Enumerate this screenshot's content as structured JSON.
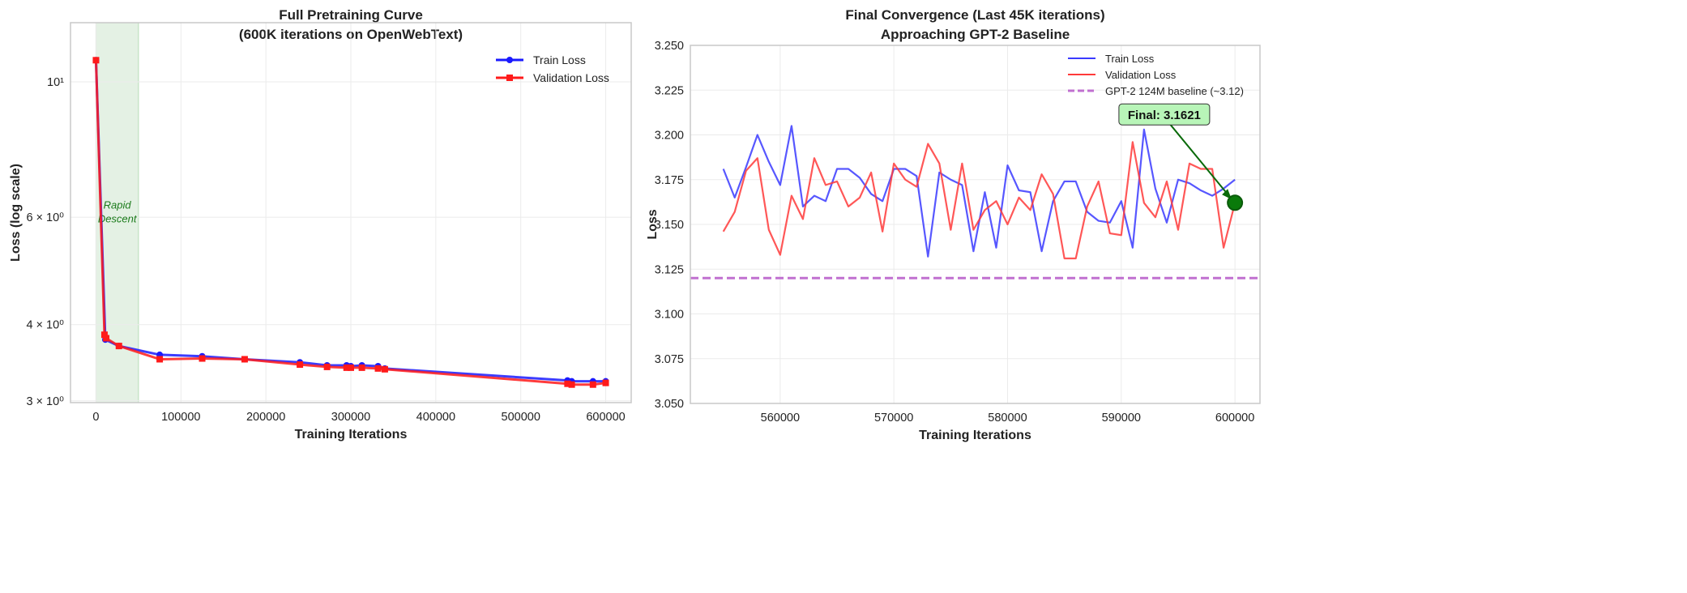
{
  "chart_data": [
    {
      "type": "line",
      "title": "Full Pretraining Curve\n(600K iterations on OpenWebText)",
      "title_lines": [
        "Full Pretraining Curve",
        "(600K iterations on OpenWebText)"
      ],
      "xlabel": "Training Iterations",
      "ylabel": "Loss (log scale)",
      "yscale": "log",
      "xlim": [
        -30000,
        630000
      ],
      "ylim": [
        2.98,
        12.5
      ],
      "xticks": [
        0,
        100000,
        200000,
        300000,
        400000,
        500000,
        600000
      ],
      "xtick_labels": [
        "0",
        "100000",
        "200000",
        "300000",
        "400000",
        "500000",
        "600000"
      ],
      "yticks": [
        3,
        4,
        6,
        10
      ],
      "ytick_labels": [
        "3 × 10⁰",
        "4 × 10⁰",
        "6 × 10⁰",
        "10¹"
      ],
      "grid": true,
      "legend_position": "top-right",
      "shaded_region": {
        "x": [
          0,
          50000
        ],
        "color": "#d4ead4",
        "label_lines": [
          "Rapid",
          "Descent"
        ],
        "label_y": 6.2
      },
      "series": [
        {
          "name": "Train Loss",
          "color": "#1a1aff",
          "marker": "circle",
          "x": [
            0,
            11000,
            27000,
            75000,
            125000,
            175000,
            240000,
            272000,
            295000,
            300000,
            313000,
            332000,
            340000,
            555000,
            560000,
            585000,
            600000
          ],
          "y": [
            10.85,
            3.78,
            3.69,
            3.57,
            3.55,
            3.51,
            3.47,
            3.43,
            3.43,
            3.42,
            3.43,
            3.42,
            3.39,
            3.24,
            3.23,
            3.23,
            3.23
          ]
        },
        {
          "name": "Validation Loss",
          "color": "#ff1a1a",
          "marker": "square",
          "x": [
            0,
            10000,
            12000,
            27000,
            75000,
            125000,
            175000,
            240000,
            272000,
            295000,
            300000,
            313000,
            332000,
            340000,
            555000,
            560000,
            585000,
            600000
          ],
          "y": [
            10.85,
            3.85,
            3.8,
            3.69,
            3.51,
            3.52,
            3.51,
            3.44,
            3.41,
            3.4,
            3.4,
            3.4,
            3.39,
            3.38,
            3.2,
            3.19,
            3.19,
            3.21
          ]
        }
      ]
    },
    {
      "type": "line",
      "title": "Final Convergence (Last 45K iterations)\nApproaching GPT-2 Baseline",
      "title_lines": [
        "Final Convergence (Last 45K iterations)",
        "Approaching GPT-2 Baseline"
      ],
      "xlabel": "Training Iterations",
      "ylabel": "Loss",
      "xlim": [
        552100,
        602200
      ],
      "ylim": [
        3.05,
        3.25
      ],
      "xticks": [
        560000,
        570000,
        580000,
        590000,
        600000
      ],
      "xtick_labels": [
        "560000",
        "570000",
        "580000",
        "590000",
        "600000"
      ],
      "yticks": [
        3.05,
        3.075,
        3.1,
        3.125,
        3.15,
        3.175,
        3.2,
        3.225,
        3.25
      ],
      "ytick_labels": [
        "3.050",
        "3.075",
        "3.100",
        "3.125",
        "3.150",
        "3.175",
        "3.200",
        "3.225",
        "3.250"
      ],
      "grid": true,
      "legend_position": "top-right",
      "x_start": 555000,
      "x_step": 1000,
      "series": [
        {
          "name": "Train Loss",
          "color": "#3a3aff",
          "y": [
            3.181,
            3.165,
            3.182,
            3.2,
            3.185,
            3.172,
            3.205,
            3.16,
            3.166,
            3.163,
            3.181,
            3.181,
            3.176,
            3.167,
            3.163,
            3.181,
            3.181,
            3.177,
            3.132,
            3.179,
            3.175,
            3.172,
            3.135,
            3.168,
            3.137,
            3.183,
            3.169,
            3.168,
            3.135,
            3.163,
            3.174,
            3.174,
            3.157,
            3.152,
            3.151,
            3.163,
            3.137,
            3.203,
            3.17,
            3.151,
            3.175,
            3.173,
            3.169,
            3.166,
            3.17,
            3.175
          ]
        },
        {
          "name": "Validation Loss",
          "color": "#ff3a3a",
          "y": [
            3.146,
            3.157,
            3.18,
            3.187,
            3.147,
            3.133,
            3.166,
            3.153,
            3.187,
            3.172,
            3.174,
            3.16,
            3.165,
            3.179,
            3.146,
            3.184,
            3.175,
            3.171,
            3.195,
            3.184,
            3.147,
            3.184,
            3.147,
            3.158,
            3.163,
            3.15,
            3.165,
            3.158,
            3.178,
            3.167,
            3.131,
            3.131,
            3.16,
            3.174,
            3.145,
            3.144,
            3.196,
            3.162,
            3.154,
            3.174,
            3.147,
            3.184,
            3.181,
            3.181,
            3.137,
            3.162
          ]
        }
      ],
      "baseline": {
        "name": "GPT-2 124M baseline (~3.12)",
        "value": 3.12,
        "color": "#c070d0"
      },
      "annotation": {
        "text": "Final: 3.1621",
        "x": 600000,
        "y": 3.1621,
        "text_x": 592500,
        "text_y": 3.211,
        "color": "#0a6a0a",
        "box_color": "#b8f5b8"
      }
    }
  ]
}
